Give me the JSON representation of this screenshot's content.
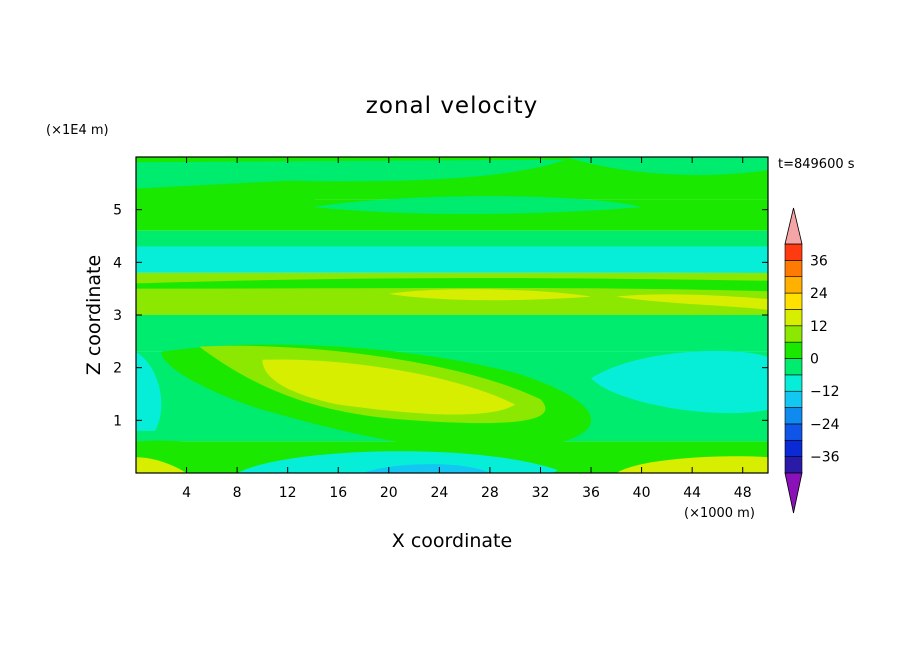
{
  "chart_data": {
    "type": "heatmap",
    "title": "zonal velocity",
    "xlabel": "X coordinate",
    "ylabel": "Z coordinate",
    "x_unit_label": "(×1000 m)",
    "y_unit_label": "(×1E4 m)",
    "time_label": "t=849600 s",
    "xlim": [
      0,
      50
    ],
    "ylim": [
      0,
      6
    ],
    "x_ticks": [
      4,
      8,
      12,
      16,
      20,
      24,
      28,
      32,
      36,
      40,
      44,
      48
    ],
    "x_tick_labels": [
      "4",
      "8",
      "12",
      "16",
      "20",
      "24",
      "28",
      "32",
      "36",
      "40",
      "44",
      "48"
    ],
    "y_ticks": [
      1,
      2,
      3,
      4,
      5
    ],
    "y_tick_labels": [
      "1",
      "2",
      "3",
      "4",
      "5"
    ],
    "colorbar": {
      "levels": [
        -42,
        -36,
        -30,
        -24,
        -18,
        -12,
        -6,
        0,
        6,
        12,
        18,
        24,
        30,
        36,
        42
      ],
      "colors": [
        "#5b0b8c",
        "#2a1aa8",
        "#0a2ad6",
        "#0f55e8",
        "#0f8bf0",
        "#12c8f2",
        "#06eed8",
        "#00ec6e",
        "#1ae800",
        "#8ce800",
        "#d8ee00",
        "#ffe000",
        "#ffb000",
        "#ff7a00",
        "#ff3a10",
        "#ff0000"
      ],
      "under_color": "#8a10b8",
      "over_color": "#f5a5a5",
      "tick_values": [
        36,
        24,
        12,
        0,
        -12,
        -24,
        -36
      ],
      "tick_labels": [
        "36",
        "24",
        "12",
        "0",
        "−12",
        "−24",
        "−36"
      ]
    },
    "field_regions": [
      {
        "name": "upper-band",
        "zmin": 5.2,
        "zmax": 6.0,
        "value": 3
      },
      {
        "name": "band-5",
        "zmin": 4.6,
        "zmax": 5.2,
        "value": 3
      },
      {
        "name": "band-4.4",
        "zmin": 4.3,
        "zmax": 4.6,
        "value": -3
      },
      {
        "name": "band-4",
        "zmin": 3.8,
        "zmax": 4.3,
        "value": -7
      },
      {
        "name": "band-3.5",
        "zmin": 3.0,
        "zmax": 3.8,
        "value": 9
      },
      {
        "name": "band-2.8",
        "zmin": 2.3,
        "zmax": 3.0,
        "value": -5
      },
      {
        "name": "band-1.5",
        "zmin": 0.6,
        "zmax": 2.3,
        "value": -4
      },
      {
        "name": "lower-band",
        "zmin": 0.0,
        "zmax": 0.6,
        "value": 2
      }
    ]
  }
}
